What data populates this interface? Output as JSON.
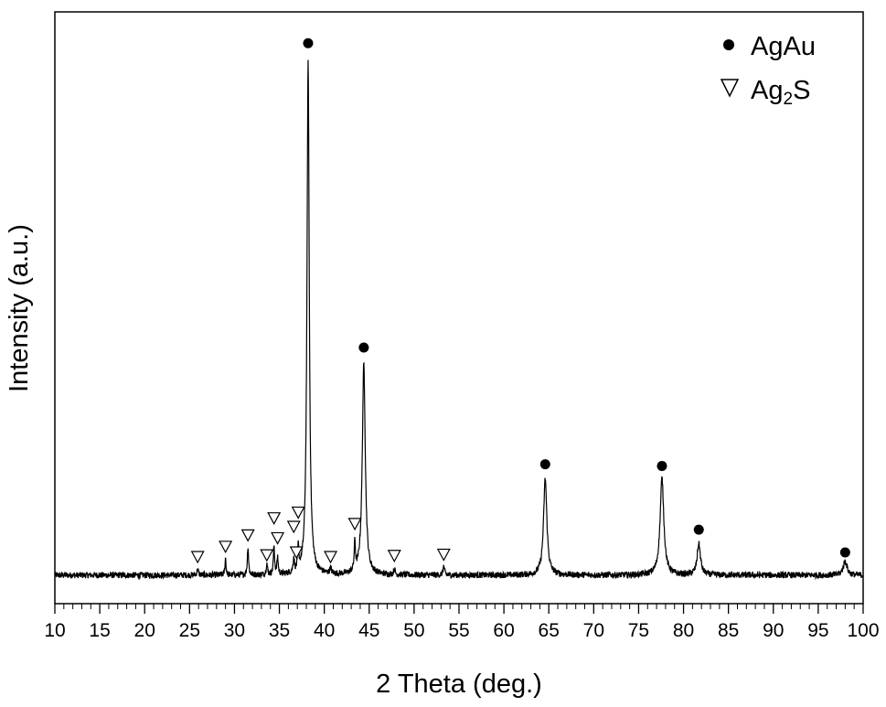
{
  "chart_data": {
    "type": "line",
    "xlabel": "2 Theta (deg.)",
    "ylabel": "Intensity (a.u.)",
    "xlim": [
      10,
      100
    ],
    "ylim": [
      -4,
      100
    ],
    "x_major_ticks": [
      10,
      15,
      20,
      25,
      30,
      35,
      40,
      45,
      50,
      55,
      60,
      65,
      70,
      75,
      80,
      85,
      90,
      95,
      100
    ],
    "x_minor_step": 1,
    "y_tick_labels": false,
    "grid": false,
    "legend": {
      "position": "top-right",
      "entries": [
        {
          "marker": "filled-circle",
          "label_main": "AgAu",
          "label_sub": ""
        },
        {
          "marker": "open-triangle-down",
          "label_main": "Ag",
          "label_sub": "2",
          "label_tail": "S"
        }
      ]
    },
    "baseline": 1,
    "series": [
      {
        "peaks": [
          {
            "x": 38.2,
            "h": 90,
            "w": 0.15,
            "phase": "AgAu"
          },
          {
            "x": 44.4,
            "h": 37,
            "w": 0.2,
            "phase": "AgAu"
          },
          {
            "x": 64.6,
            "h": 17,
            "w": 0.22,
            "phase": "AgAu"
          },
          {
            "x": 77.6,
            "h": 17,
            "w": 0.25,
            "phase": "AgAu"
          },
          {
            "x": 81.7,
            "h": 5.5,
            "w": 0.22,
            "phase": "AgAu"
          },
          {
            "x": 98.0,
            "h": 2.5,
            "w": 0.25,
            "phase": "AgAu"
          },
          {
            "x": 25.9,
            "h": 1.0,
            "w": 0.1,
            "phase": "Ag2S"
          },
          {
            "x": 29.0,
            "h": 3.0,
            "w": 0.07,
            "phase": "Ag2S"
          },
          {
            "x": 31.5,
            "h": 5.0,
            "w": 0.08,
            "phase": "Ag2S"
          },
          {
            "x": 33.6,
            "h": 2.0,
            "w": 0.08,
            "phase": "Ag2S"
          },
          {
            "x": 34.4,
            "h": 5.0,
            "w": 0.08,
            "phase": "Ag2S"
          },
          {
            "x": 34.8,
            "h": 3.0,
            "w": 0.08,
            "phase": "Ag2S"
          },
          {
            "x": 36.6,
            "h": 2.5,
            "w": 0.08,
            "phase": "Ag2S"
          },
          {
            "x": 37.1,
            "h": 4.0,
            "w": 0.08,
            "phase": "Ag2S"
          },
          {
            "x": 40.7,
            "h": 1.0,
            "w": 0.1,
            "phase": "Ag2S"
          },
          {
            "x": 43.4,
            "h": 5.0,
            "w": 0.08,
            "phase": "Ag2S"
          },
          {
            "x": 47.8,
            "h": 1.0,
            "w": 0.1,
            "phase": "Ag2S"
          },
          {
            "x": 53.3,
            "h": 1.5,
            "w": 0.1,
            "phase": "Ag2S"
          }
        ]
      }
    ],
    "markers": [
      {
        "x": 38.2,
        "y": 94.5,
        "symbol": "filled-circle"
      },
      {
        "x": 44.4,
        "y": 41.0,
        "symbol": "filled-circle"
      },
      {
        "x": 64.6,
        "y": 20.5,
        "symbol": "filled-circle"
      },
      {
        "x": 77.6,
        "y": 20.2,
        "symbol": "filled-circle"
      },
      {
        "x": 81.7,
        "y": 9.0,
        "symbol": "filled-circle"
      },
      {
        "x": 98.0,
        "y": 5.0,
        "symbol": "filled-circle"
      },
      {
        "x": 25.9,
        "y": 4.2,
        "symbol": "open-triangle-down"
      },
      {
        "x": 29.0,
        "y": 6.0,
        "symbol": "open-triangle-down"
      },
      {
        "x": 31.5,
        "y": 8.0,
        "symbol": "open-triangle-down"
      },
      {
        "x": 33.6,
        "y": 4.5,
        "symbol": "open-triangle-down"
      },
      {
        "x": 34.4,
        "y": 11.0,
        "symbol": "open-triangle-down"
      },
      {
        "x": 34.8,
        "y": 7.5,
        "symbol": "open-triangle-down"
      },
      {
        "x": 36.6,
        "y": 9.5,
        "symbol": "open-triangle-down"
      },
      {
        "x": 37.1,
        "y": 12.0,
        "symbol": "open-triangle-down"
      },
      {
        "x": 36.9,
        "y": 5.0,
        "symbol": "open-triangle-down"
      },
      {
        "x": 40.7,
        "y": 4.2,
        "symbol": "open-triangle-down"
      },
      {
        "x": 43.4,
        "y": 10.0,
        "symbol": "open-triangle-down"
      },
      {
        "x": 47.8,
        "y": 4.4,
        "symbol": "open-triangle-down"
      },
      {
        "x": 53.3,
        "y": 4.6,
        "symbol": "open-triangle-down"
      }
    ]
  }
}
